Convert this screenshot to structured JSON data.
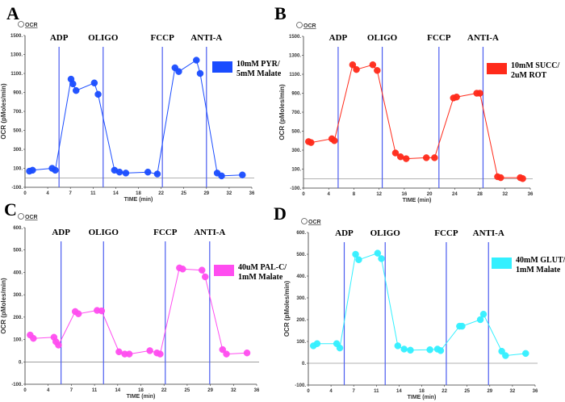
{
  "chart_data": [
    {
      "type": "line",
      "panel_label": "A",
      "legend_marker_label": "OCR",
      "xlabel": "TIME (min)",
      "ylabel": "OCR (pMoles/min)",
      "xlim": [
        0,
        36
      ],
      "ylim": [
        -100,
        1500
      ],
      "x_ticks": [
        "0",
        "4",
        "7",
        "11",
        "14",
        "18",
        "22",
        "25",
        "29",
        "32",
        "36"
      ],
      "y_ticks": [
        -100,
        100,
        300,
        500,
        700,
        900,
        1100,
        1300,
        1500
      ],
      "grid": false,
      "series": [
        {
          "name": "10mM PYR/ 5mM Malate",
          "legend_lines": [
            "10mM PYR/",
            "5mM Malate"
          ],
          "color": "#1a4cff",
          "points": [
            [
              0.7,
              70
            ],
            [
              1.2,
              80
            ],
            [
              4.3,
              100
            ],
            [
              4.8,
              80
            ],
            [
              7.3,
              1040
            ],
            [
              7.6,
              990
            ],
            [
              8.1,
              920
            ],
            [
              11,
              1000
            ],
            [
              11.6,
              880
            ],
            [
              14.2,
              80
            ],
            [
              15,
              60
            ],
            [
              16,
              50
            ],
            [
              19.5,
              60
            ],
            [
              21,
              40
            ],
            [
              23.8,
              1160
            ],
            [
              24.4,
              1120
            ],
            [
              27.2,
              1240
            ],
            [
              27.8,
              1100
            ],
            [
              30.5,
              50
            ],
            [
              31.2,
              20
            ],
            [
              34.5,
              30
            ]
          ]
        }
      ],
      "injections": [
        {
          "label": "ADP",
          "time": 5.4
        },
        {
          "label": "OLIGO",
          "time": 12.4
        },
        {
          "label": "FCCP",
          "time": 21.8
        },
        {
          "label": "ANTI-A",
          "time": 28.8
        }
      ]
    },
    {
      "type": "line",
      "panel_label": "B",
      "legend_marker_label": "OCR",
      "xlabel": "TIME (min)",
      "ylabel": "OCR (pMoles/min)",
      "xlim": [
        0,
        36
      ],
      "ylim": [
        -100,
        1500
      ],
      "x_ticks": [
        "0",
        "4",
        "8",
        "12",
        "16",
        "20",
        "24",
        "28",
        "32",
        "36"
      ],
      "y_ticks": [
        -100,
        100,
        300,
        500,
        700,
        900,
        1100,
        1300,
        1500
      ],
      "grid": false,
      "series": [
        {
          "name": "10mM SUCC/ 2uM ROT",
          "legend_lines": [
            "10mM SUCC/",
            "2uM  ROT"
          ],
          "color": "#ff2a1a",
          "points": [
            [
              0.8,
              390
            ],
            [
              1.2,
              380
            ],
            [
              4.5,
              420
            ],
            [
              4.9,
              400
            ],
            [
              7.8,
              1200
            ],
            [
              8.4,
              1150
            ],
            [
              11,
              1200
            ],
            [
              11.7,
              1140
            ],
            [
              14.6,
              270
            ],
            [
              15.4,
              230
            ],
            [
              16.3,
              210
            ],
            [
              19.5,
              220
            ],
            [
              20.8,
              220
            ],
            [
              23.8,
              850
            ],
            [
              24.3,
              860
            ],
            [
              27.5,
              900
            ],
            [
              28,
              900
            ],
            [
              30.8,
              20
            ],
            [
              31.3,
              10
            ],
            [
              34.4,
              10
            ],
            [
              34.8,
              0
            ]
          ]
        }
      ],
      "injections": [
        {
          "label": "ADP",
          "time": 5.5
        },
        {
          "label": "OLIGO",
          "time": 12.5
        },
        {
          "label": "FCCP",
          "time": 21.5
        },
        {
          "label": "ANTI-A",
          "time": 28.5
        }
      ]
    },
    {
      "type": "line",
      "panel_label": "C",
      "legend_marker_label": "OCR",
      "xlabel": "TIME (min)",
      "ylabel": "OCR (pMoles/min)",
      "xlim": [
        0,
        36
      ],
      "ylim": [
        -100,
        600
      ],
      "x_ticks": [
        "0",
        "4",
        "7",
        "11",
        "14",
        "18",
        "22",
        "25",
        "29",
        "32",
        "36"
      ],
      "y_ticks": [
        -100,
        0,
        100,
        200,
        300,
        400,
        500,
        600
      ],
      "grid": false,
      "series": [
        {
          "name": "40uM PAL-C/ 1mM Malate",
          "legend_lines": [
            "40uM PAL-C/",
            "1mM Malate"
          ],
          "color": "#ff4df0",
          "points": [
            [
              0.8,
              120
            ],
            [
              1.3,
              105
            ],
            [
              4.5,
              110
            ],
            [
              4.8,
              90
            ],
            [
              5.2,
              75
            ],
            [
              7.8,
              225
            ],
            [
              8.3,
              215
            ],
            [
              11.2,
              230
            ],
            [
              11.9,
              228
            ],
            [
              14.6,
              45
            ],
            [
              15.5,
              35
            ],
            [
              16.2,
              35
            ],
            [
              19.4,
              50
            ],
            [
              20.5,
              40
            ],
            [
              21,
              35
            ],
            [
              24,
              420
            ],
            [
              24.5,
              415
            ],
            [
              27.5,
              410
            ],
            [
              28,
              380
            ],
            [
              30.7,
              55
            ],
            [
              31.3,
              35
            ],
            [
              34.5,
              40
            ]
          ]
        }
      ],
      "injections": [
        {
          "label": "ADP",
          "time": 5.6
        },
        {
          "label": "OLIGO",
          "time": 12.2
        },
        {
          "label": "FCCP",
          "time": 21.8
        },
        {
          "label": "ANTI-A",
          "time": 28.7
        }
      ]
    },
    {
      "type": "line",
      "panel_label": "D",
      "legend_marker_label": "OCR",
      "xlabel": "TIME (min)",
      "ylabel": "OCR (pMoles/min)",
      "xlim": [
        0,
        36
      ],
      "ylim": [
        -100,
        600
      ],
      "x_ticks": [
        "0",
        "4",
        "7",
        "11",
        "14",
        "18",
        "22",
        "25",
        "29",
        "32",
        "36"
      ],
      "y_ticks": [
        -100,
        0,
        100,
        200,
        300,
        400,
        500,
        600
      ],
      "grid": false,
      "series": [
        {
          "name": "40mM GLUT/ 1mM Malate",
          "legend_lines": [
            "40mM GLUT/",
            "1mM Malate"
          ],
          "color": "#33f0ff",
          "points": [
            [
              0.8,
              80
            ],
            [
              1.4,
              90
            ],
            [
              4.5,
              90
            ],
            [
              5,
              70
            ],
            [
              7.5,
              500
            ],
            [
              8,
              475
            ],
            [
              11,
              505
            ],
            [
              11.6,
              480
            ],
            [
              14.2,
              80
            ],
            [
              15.2,
              65
            ],
            [
              16.2,
              60
            ],
            [
              19.3,
              62
            ],
            [
              20.5,
              65
            ],
            [
              21,
              58
            ],
            [
              24,
              170
            ],
            [
              24.4,
              170
            ],
            [
              27.3,
              200
            ],
            [
              27.8,
              225
            ],
            [
              30.7,
              55
            ],
            [
              31.3,
              35
            ],
            [
              34.5,
              45
            ]
          ]
        }
      ],
      "injections": [
        {
          "label": "ADP",
          "time": 5.7
        },
        {
          "label": "OLIGO",
          "time": 12.2
        },
        {
          "label": "FCCP",
          "time": 21.9
        },
        {
          "label": "ANTI-A",
          "time": 28.6
        }
      ]
    }
  ]
}
